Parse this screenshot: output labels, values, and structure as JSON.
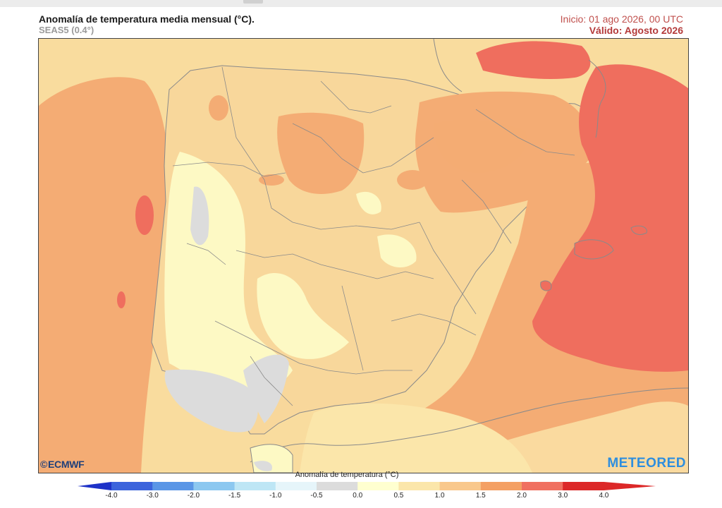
{
  "header": {
    "title": "Anomalía de temperatura media mensual (°C).",
    "subtitle": "SEAS5 (0.4°)",
    "init_text": "Inicio: 01 ago 2026, 00 UTC",
    "valid_text": "Válido: Agosto 2026"
  },
  "logos": {
    "ecmwf": "ECMWF",
    "meteored": "METEORED"
  },
  "colorbar": {
    "title": "Anomalía de temperatura (°C)",
    "ticks": [
      "-4.0",
      "-3.0",
      "-2.0",
      "-1.5",
      "-1.0",
      "-0.5",
      "0.0",
      "0.5",
      "1.0",
      "1.5",
      "2.0",
      "3.0",
      "4.0"
    ],
    "colors": [
      "#1e32c8",
      "#3c64dc",
      "#5a96e6",
      "#8cc8f0",
      "#bee6f5",
      "#e6f5fa",
      "#dcdcdc",
      "#ffffd0",
      "#fbe6aa",
      "#f9c88c",
      "#f4a064",
      "#f07060",
      "#dc2828"
    ]
  },
  "map": {
    "colors": {
      "sea_base": "#f9dc9e",
      "land_light": "#fdf9c4",
      "land_mid": "#f8d79b",
      "orange": "#f4ac74",
      "red": "#ef6e5e",
      "grey": "#dcdcdc",
      "border": "#8a8a8a"
    }
  }
}
